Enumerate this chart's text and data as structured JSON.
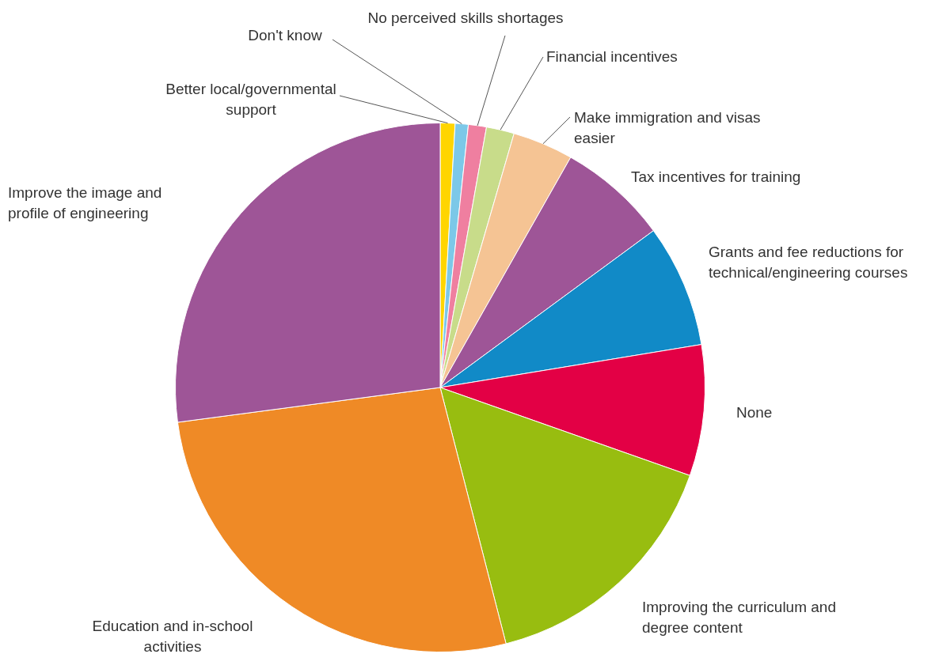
{
  "chart_data": {
    "type": "pie",
    "categories": [
      "Better local/governmental support",
      "Don't know",
      "No perceived skills shortages",
      "Financial incentives",
      "Make immigration and visas easier",
      "Tax incentives for training",
      "Grants and fee reductions for technical/engineering courses",
      "None",
      "Improving the curriculum and degree content",
      "Education and in-school activities",
      "Improve the image and profile of engineering"
    ],
    "values": [
      0.9,
      0.8,
      1.1,
      1.7,
      3.7,
      6.7,
      7.5,
      8.0,
      15.6,
      26.9,
      27.1
    ],
    "colors": [
      "#ffd500",
      "#7cc8e8",
      "#ef7fa0",
      "#c8dc8a",
      "#f5c494",
      "#9e5597",
      "#118ac7",
      "#e30045",
      "#98bd10",
      "#ef8a26",
      "#9e5597"
    ]
  }
}
